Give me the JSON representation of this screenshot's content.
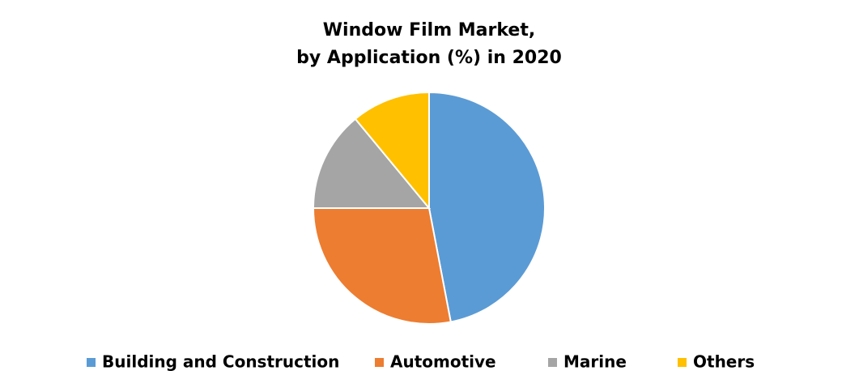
{
  "chart_data": {
    "type": "pie",
    "title": [
      "Window Film Market,",
      "by Application (%) in 2020"
    ],
    "categories": [
      "Building and Construction",
      "Automotive",
      "Marine",
      "Others"
    ],
    "values": [
      47,
      28,
      14,
      11
    ],
    "colors": [
      "#5b9bd5",
      "#ed7d31",
      "#a5a5a5",
      "#ffc000"
    ],
    "legend": "bottom"
  }
}
